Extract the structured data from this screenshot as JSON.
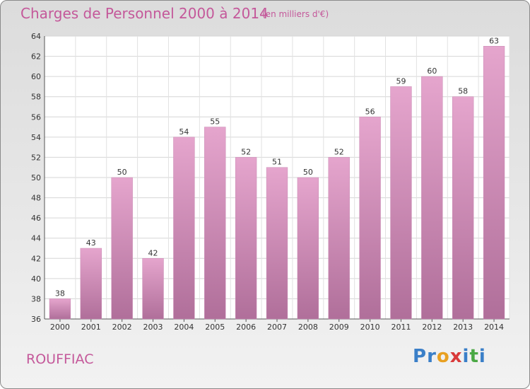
{
  "title": "Charges de Personnel 2000 à 2014",
  "subtitle": "(en milliers d'€)",
  "place": "ROUFFIAC",
  "logo": {
    "letters": [
      "P",
      "r",
      "o",
      "x",
      "i",
      "t",
      "i"
    ],
    "colors": [
      "#3a7fc8",
      "#3a7fc8",
      "#e8a021",
      "#d93a3a",
      "#3a7fc8",
      "#4aa844",
      "#3a7fc8"
    ]
  },
  "colors": {
    "bar_top": "#e5a5cd",
    "bar_bottom": "#b06f9a",
    "text": "#c4589a"
  },
  "chart_data": {
    "type": "bar",
    "categories": [
      "2000",
      "2001",
      "2002",
      "2003",
      "2004",
      "2005",
      "2006",
      "2007",
      "2008",
      "2009",
      "2010",
      "2011",
      "2012",
      "2013",
      "2014"
    ],
    "values": [
      38,
      43,
      50,
      42,
      54,
      55,
      52,
      51,
      50,
      52,
      56,
      59,
      60,
      58,
      63
    ],
    "title": "Charges de Personnel 2000 à 2014",
    "xlabel": "",
    "ylabel": "",
    "ylim": [
      36,
      64
    ],
    "yticks": [
      36,
      38,
      40,
      42,
      44,
      46,
      48,
      50,
      52,
      54,
      56,
      58,
      60,
      62,
      64
    ],
    "grid": true
  }
}
